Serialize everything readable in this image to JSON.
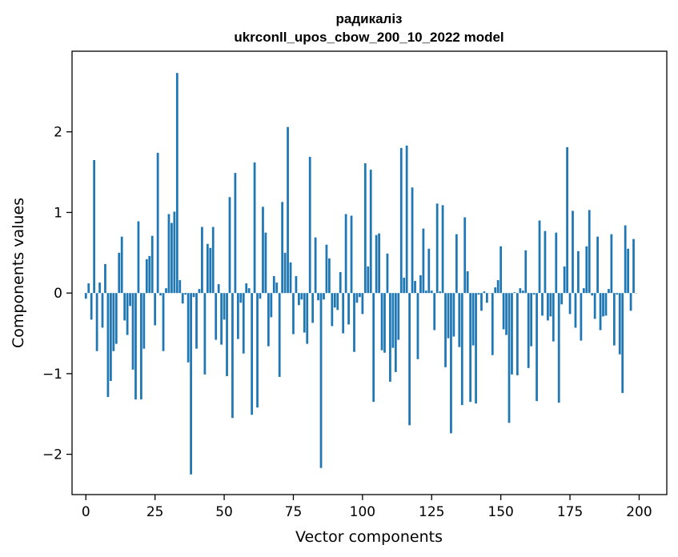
{
  "chart_data": {
    "type": "bar",
    "title": "радикаліз",
    "subtitle": "ukrconll_upos_cbow_200_10_2022 model",
    "xlabel": "Vector components",
    "ylabel": "Components values",
    "xlim": [
      -5,
      210
    ],
    "ylim": [
      -2.5,
      3.0
    ],
    "xticks": [
      0,
      25,
      50,
      75,
      100,
      125,
      150,
      175,
      200
    ],
    "yticks": [
      -2,
      -1,
      0,
      1,
      2
    ],
    "xtick_labels": [
      "0",
      "25",
      "50",
      "75",
      "100",
      "125",
      "150",
      "175",
      "200"
    ],
    "ytick_labels": [
      "−2",
      "−1",
      "0",
      "1",
      "2"
    ],
    "bar_color": "#1f77b4",
    "grid": false,
    "values": [
      -0.07,
      0.12,
      -0.33,
      1.65,
      -0.72,
      0.13,
      -0.43,
      0.36,
      -1.29,
      -1.09,
      -0.72,
      -0.63,
      0.5,
      0.7,
      -0.34,
      -0.52,
      -0.16,
      -0.95,
      -1.32,
      0.89,
      -1.32,
      -0.69,
      0.42,
      0.46,
      0.71,
      -0.4,
      1.74,
      -0.03,
      -0.72,
      0.06,
      0.98,
      0.87,
      1.01,
      2.73,
      0.16,
      -0.13,
      -0.02,
      -0.86,
      -2.25,
      -0.05,
      -0.69,
      0.05,
      0.82,
      -1.01,
      0.61,
      0.56,
      0.82,
      -0.58,
      0.11,
      -0.64,
      -0.33,
      -1.03,
      1.19,
      -1.55,
      1.49,
      -0.57,
      -0.12,
      -0.75,
      0.12,
      0.06,
      -1.51,
      1.62,
      -1.42,
      -0.07,
      1.07,
      0.75,
      -0.66,
      -0.3,
      0.21,
      0.13,
      -1.04,
      1.13,
      0.5,
      2.06,
      0.38,
      -0.51,
      0.21,
      -0.15,
      -0.08,
      -0.49,
      -0.63,
      1.69,
      -0.37,
      0.69,
      -0.09,
      -2.17,
      -0.08,
      0.6,
      0.43,
      -0.41,
      -0.18,
      -0.21,
      0.26,
      -0.5,
      0.98,
      -0.39,
      0.96,
      -0.73,
      -0.12,
      -0.05,
      -0.26,
      1.61,
      0.33,
      1.53,
      -1.35,
      0.72,
      0.74,
      -0.71,
      -0.74,
      0.49,
      -1.1,
      -0.68,
      -0.98,
      -0.58,
      1.8,
      0.19,
      1.83,
      -1.64,
      1.31,
      0.15,
      -0.82,
      0.22,
      0.8,
      0.03,
      0.55,
      0.03,
      -0.46,
      1.11,
      0.02,
      1.09,
      -0.92,
      -0.56,
      -1.74,
      -0.54,
      0.73,
      -0.67,
      -1.39,
      0.94,
      0.27,
      -1.35,
      -0.65,
      -1.37,
      -0.02,
      -0.22,
      0.02,
      -0.12,
      0.0,
      -0.77,
      0.07,
      0.16,
      0.58,
      -0.45,
      -0.52,
      -1.61,
      -1.01,
      0.01,
      -1.02,
      0.06,
      0.03,
      0.53,
      -0.93,
      -0.66,
      -0.02,
      -1.34,
      0.9,
      -0.28,
      0.77,
      -0.34,
      -0.29,
      -0.6,
      0.75,
      -1.36,
      -0.14,
      0.33,
      1.81,
      -0.26,
      1.02,
      -0.43,
      0.52,
      -0.59,
      0.06,
      0.58,
      1.03,
      -0.03,
      -0.32,
      0.7,
      -0.46,
      -0.29,
      -0.28,
      0.05,
      0.73,
      -0.65,
      -0.02,
      -0.76,
      -1.24,
      0.84,
      0.55,
      -0.22,
      0.67,
      0.0
    ]
  }
}
